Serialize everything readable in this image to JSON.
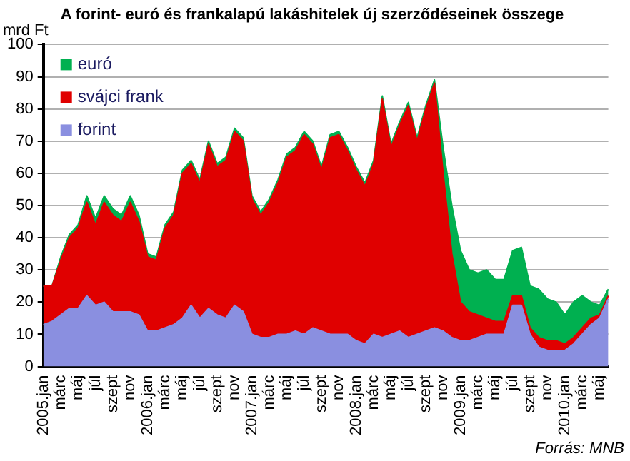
{
  "chart_data": {
    "type": "area",
    "stacked": true,
    "title": "A forint- euró és frankalapú lakáshitelek új szerződéseinek összege",
    "ylabel": "mrd Ft",
    "annotations": [
      "Forrás: MNB"
    ],
    "categories": [
      "2005.jan",
      null,
      "márc",
      null,
      "máj",
      null,
      "júl",
      null,
      "szept",
      null,
      "nov",
      null,
      "2006.jan",
      null,
      "márc",
      null,
      "máj",
      null,
      "júl",
      null,
      "szept",
      null,
      "nov",
      null,
      "2007.jan",
      null,
      "márc",
      null,
      "máj",
      null,
      "júl",
      null,
      "szept",
      null,
      "nov",
      null,
      "2008.jan",
      null,
      "márc",
      null,
      "máj",
      null,
      "júl",
      null,
      "szept",
      null,
      "nov",
      null,
      "2009.jan",
      null,
      "márc",
      null,
      "máj",
      null,
      "júl",
      null,
      "szept",
      null,
      "nov",
      null,
      "2010.jan",
      null,
      "márc",
      null,
      "máj",
      null
    ],
    "series": [
      {
        "name": "forint",
        "color": "#8a8fe0",
        "values": [
          13,
          14,
          16,
          18,
          18,
          22,
          19,
          20,
          17,
          17,
          17,
          16,
          11,
          11,
          12,
          13,
          15,
          19,
          15,
          18,
          16,
          15,
          19,
          17,
          10,
          9,
          9,
          10,
          10,
          11,
          10,
          12,
          11,
          10,
          10,
          10,
          8,
          7,
          10,
          9,
          10,
          11,
          9,
          10,
          11,
          12,
          11,
          9,
          8,
          8,
          9,
          10,
          10,
          10,
          19,
          19,
          10,
          6,
          5,
          5,
          5,
          7,
          10,
          13,
          15,
          21
        ]
      },
      {
        "name": "svájci frank",
        "color": "#e00000",
        "values": [
          12,
          11,
          17,
          22,
          25,
          29,
          25,
          31,
          30,
          28,
          34,
          29,
          23,
          22,
          31,
          34,
          45,
          44,
          42,
          51,
          46,
          49,
          54,
          53,
          42,
          38,
          42,
          47,
          55,
          56,
          62,
          57,
          50,
          61,
          62,
          57,
          53,
          49,
          53,
          74,
          58,
          64,
          72,
          60,
          69,
          76,
          49,
          26,
          12,
          9,
          7,
          5,
          4,
          4,
          3,
          3,
          2,
          3,
          3,
          3,
          2,
          2,
          2,
          2,
          1,
          1
        ]
      },
      {
        "name": "euró",
        "color": "#00b050",
        "values": [
          0,
          0,
          1,
          1,
          1,
          2,
          2,
          2,
          2,
          2,
          2,
          2,
          1,
          1,
          1,
          1,
          1,
          1,
          1,
          1,
          1,
          1,
          1,
          1,
          1,
          1,
          1,
          1,
          1,
          1,
          1,
          1,
          1,
          1,
          1,
          1,
          1,
          1,
          1,
          1,
          1,
          1,
          1,
          1,
          1,
          1,
          8,
          15,
          16,
          13,
          13,
          15,
          13,
          13,
          14,
          15,
          13,
          15,
          13,
          12,
          9,
          11,
          10,
          5,
          3,
          2
        ]
      }
    ],
    "ylim": [
      0,
      100
    ],
    "yticks": [
      0,
      10,
      20,
      30,
      40,
      50,
      60,
      70,
      80,
      90,
      100
    ],
    "grid": "y",
    "legend": "top left"
  }
}
